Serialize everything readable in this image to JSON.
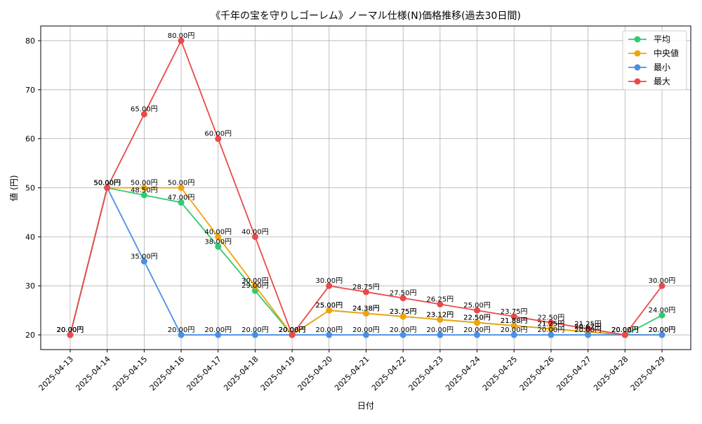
{
  "chart_data": {
    "type": "line",
    "title": "《千年の宝を守りしゴーレム》ノーマル仕様(N)価格推移(過去30日間)",
    "xlabel": "日付",
    "ylabel": "値 (円)",
    "categories": [
      "2025-04-13",
      "2025-04-14",
      "2025-04-15",
      "2025-04-16",
      "2025-04-17",
      "2025-04-18",
      "2025-04-19",
      "2025-04-20",
      "2025-04-21",
      "2025-04-22",
      "2025-04-23",
      "2025-04-24",
      "2025-04-25",
      "2025-04-26",
      "2025-04-27",
      "2025-04-28",
      "2025-04-29"
    ],
    "ylim": [
      17,
      83
    ],
    "yticks": [
      20,
      30,
      40,
      50,
      60,
      70,
      80
    ],
    "grid": true,
    "legend_position": "top-right",
    "series": [
      {
        "name": "平均",
        "color": "#2ecc71",
        "values": [
          20,
          50,
          48.5,
          47,
          38,
          29,
          20,
          25,
          24.38,
          23.75,
          23.12,
          22.5,
          21.88,
          21.25,
          20.62,
          20,
          24
        ],
        "labels": [
          "20.00円",
          "50.00円",
          "48.50円",
          "47.00円",
          "38.00円",
          "29.00円",
          "20.00円",
          "25.00円",
          "24.38円",
          "23.75円",
          "23.12円",
          "22.50円",
          "21.88円",
          "21.25円",
          "20.62円",
          "20.00円",
          "24.00円"
        ]
      },
      {
        "name": "中央値",
        "color": "#f0a30a",
        "values": [
          20,
          50,
          50,
          50,
          40,
          30,
          20,
          25,
          24.38,
          23.75,
          23.12,
          22.5,
          21.88,
          21.25,
          20.62,
          20,
          20
        ],
        "labels": [
          "20.00円",
          "50.00円",
          "50.00円",
          "50.00円",
          "40.00円",
          "30.00円",
          "20.00円",
          "25.00円",
          "24.38円",
          "23.75円",
          "23.12円",
          "22.50円",
          "21.88円",
          "21.25円",
          "20.62円",
          "20.00円",
          "20.00円"
        ]
      },
      {
        "name": "最小",
        "color": "#4a90e2",
        "values": [
          20,
          50,
          35,
          20,
          20,
          20,
          20,
          20,
          20,
          20,
          20,
          20,
          20,
          20,
          20,
          20,
          20
        ],
        "labels": [
          "20.00円",
          "50.00円",
          "35.00円",
          "20.00円",
          "20.00円",
          "20.00円",
          "20.00円",
          "20.00円",
          "20.00円",
          "20.00円",
          "20.00円",
          "20.00円",
          "20.00円",
          "20.00円",
          "20.00円",
          "20.00円",
          "20.00円"
        ]
      },
      {
        "name": "最大",
        "color": "#e84a4a",
        "values": [
          20,
          50,
          65,
          80,
          60,
          40,
          20,
          30,
          28.75,
          27.5,
          26.25,
          25,
          23.75,
          22.5,
          21.25,
          20,
          30
        ],
        "labels": [
          "20.00円",
          "50.00円",
          "65.00円",
          "80.00円",
          "60.00円",
          "40.00円",
          "20.00円",
          "30.00円",
          "28.75円",
          "27.50円",
          "26.25円",
          "25.00円",
          "23.75円",
          "22.50円",
          "21.25円",
          "20.00円",
          "30.00円"
        ]
      }
    ]
  }
}
